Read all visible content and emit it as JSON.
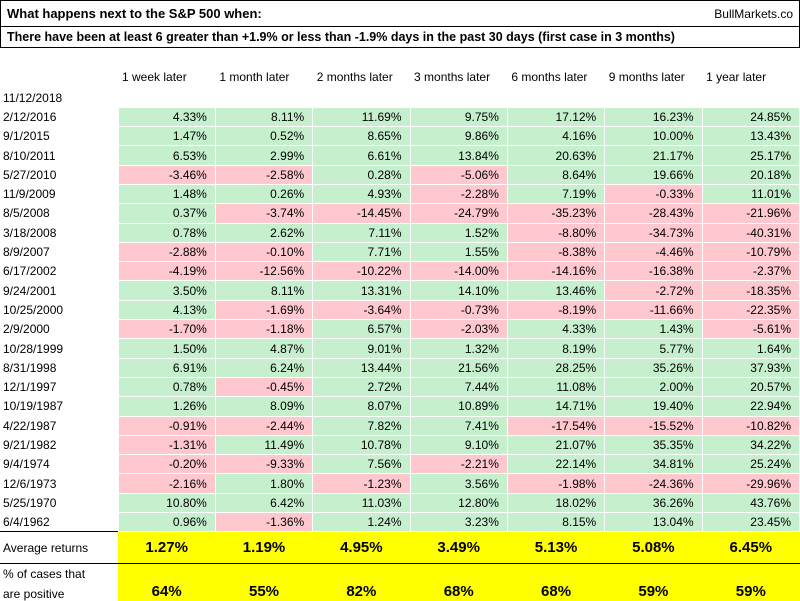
{
  "header": {
    "title": "What happens next to the S&P 500 when:",
    "brand": "BullMarkets.co",
    "condition": "There have been at least 6 greater than +1.9% or less than -1.9% days in the past 30 days (first case in 3 months)"
  },
  "summary_labels": {
    "average": "Average returns",
    "positive_line1": "% of cases that",
    "positive_line2": "are positive"
  },
  "colors": {
    "positive_bg": "#C6EFCE",
    "negative_bg": "#FFC7CE",
    "highlight_bg": "#FFFF00"
  },
  "chart_data": {
    "type": "table",
    "title": "What happens next to the S&P 500 when:",
    "subtitle": "There have been at least 6 greater than +1.9% or less than -1.9% days in the past 30 days (first case in 3 months)",
    "value_format": "percent",
    "columns": [
      "1 week later",
      "1 month later",
      "2 months later",
      "3 months later",
      "6 months later",
      "9 months later",
      "1 year later"
    ],
    "rows": [
      {
        "date": "11/12/2018",
        "values": []
      },
      {
        "date": "2/12/2016",
        "values": [
          4.33,
          8.11,
          11.69,
          9.75,
          17.12,
          16.23,
          24.85
        ]
      },
      {
        "date": "9/1/2015",
        "values": [
          1.47,
          0.52,
          8.65,
          9.86,
          4.16,
          10.0,
          13.43
        ]
      },
      {
        "date": "8/10/2011",
        "values": [
          6.53,
          2.99,
          6.61,
          13.84,
          20.63,
          21.17,
          25.17
        ]
      },
      {
        "date": "5/27/2010",
        "values": [
          -3.46,
          -2.58,
          0.28,
          -5.06,
          8.64,
          19.66,
          20.18
        ]
      },
      {
        "date": "11/9/2009",
        "values": [
          1.48,
          0.26,
          4.93,
          -2.28,
          7.19,
          -0.33,
          11.01
        ]
      },
      {
        "date": "8/5/2008",
        "values": [
          0.37,
          -3.74,
          -14.45,
          -24.79,
          -35.23,
          -28.43,
          -21.96
        ]
      },
      {
        "date": "3/18/2008",
        "values": [
          0.78,
          2.62,
          7.11,
          1.52,
          -8.8,
          -34.73,
          -40.31
        ]
      },
      {
        "date": "8/9/2007",
        "values": [
          -2.88,
          -0.1,
          7.71,
          1.55,
          -8.38,
          -4.46,
          -10.79
        ]
      },
      {
        "date": "6/17/2002",
        "values": [
          -4.19,
          -12.56,
          -10.22,
          -14.0,
          -14.16,
          -16.38,
          -2.37
        ]
      },
      {
        "date": "9/24/2001",
        "values": [
          3.5,
          8.11,
          13.31,
          14.1,
          13.46,
          -2.72,
          -18.35
        ]
      },
      {
        "date": "10/25/2000",
        "values": [
          4.13,
          -1.69,
          -3.64,
          -0.73,
          -8.19,
          -11.66,
          -22.35
        ]
      },
      {
        "date": "2/9/2000",
        "values": [
          -1.7,
          -1.18,
          6.57,
          -2.03,
          4.33,
          1.43,
          -5.61
        ]
      },
      {
        "date": "10/28/1999",
        "values": [
          1.5,
          4.87,
          9.01,
          1.32,
          8.19,
          5.77,
          1.64
        ]
      },
      {
        "date": "8/31/1998",
        "values": [
          6.91,
          6.24,
          13.44,
          21.56,
          28.25,
          35.26,
          37.93
        ]
      },
      {
        "date": "12/1/1997",
        "values": [
          0.78,
          -0.45,
          2.72,
          7.44,
          11.08,
          2.0,
          20.57
        ]
      },
      {
        "date": "10/19/1987",
        "values": [
          1.26,
          8.09,
          8.07,
          10.89,
          14.71,
          19.4,
          22.94
        ]
      },
      {
        "date": "4/22/1987",
        "values": [
          -0.91,
          -2.44,
          7.82,
          7.41,
          -17.54,
          -15.52,
          -10.82
        ]
      },
      {
        "date": "9/21/1982",
        "values": [
          -1.31,
          11.49,
          10.78,
          9.1,
          21.07,
          35.35,
          34.22
        ]
      },
      {
        "date": "9/4/1974",
        "values": [
          -0.2,
          -9.33,
          7.56,
          -2.21,
          22.14,
          34.81,
          25.24
        ]
      },
      {
        "date": "12/6/1973",
        "values": [
          -2.16,
          1.8,
          -1.23,
          3.56,
          -1.98,
          -24.36,
          -29.96
        ]
      },
      {
        "date": "5/25/1970",
        "values": [
          10.8,
          6.42,
          11.03,
          12.8,
          18.02,
          36.26,
          43.76
        ]
      },
      {
        "date": "6/4/1962",
        "values": [
          0.96,
          -1.36,
          1.24,
          3.23,
          8.15,
          13.04,
          23.45
        ]
      }
    ],
    "average_returns": [
      1.27,
      1.19,
      4.95,
      3.49,
      5.13,
      5.08,
      6.45
    ],
    "percent_positive": [
      64,
      55,
      82,
      68,
      68,
      59,
      59
    ]
  }
}
